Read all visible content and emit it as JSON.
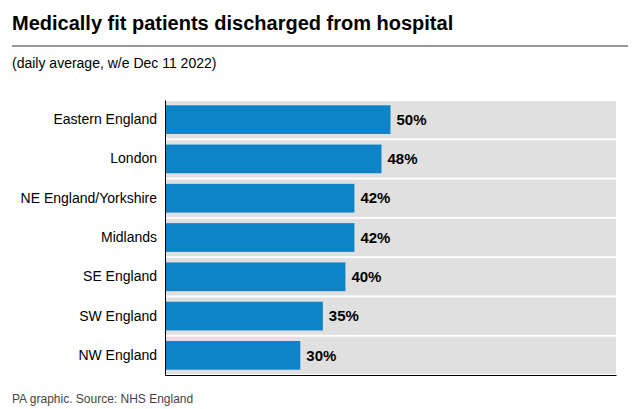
{
  "chart_data": {
    "type": "bar",
    "orientation": "horizontal",
    "title": "Medically fit patients discharged from hospital",
    "subtitle": "(daily average, w/e Dec 11 2022)",
    "footer": "PA graphic. Source: NHS England",
    "categories": [
      "NW England",
      "SW England",
      "SE England",
      "Midlands",
      "NE England/Yorkshire",
      "London",
      "Eastern England"
    ],
    "values": [
      30,
      35,
      40,
      42,
      42,
      48,
      50
    ],
    "value_labels": [
      "30%",
      "35%",
      "40%",
      "42%",
      "42%",
      "48%",
      "50%"
    ],
    "data_labels": true,
    "color": "#0e83c8",
    "xlim": [
      0,
      100
    ],
    "grid": false,
    "tick_labels": "y"
  }
}
